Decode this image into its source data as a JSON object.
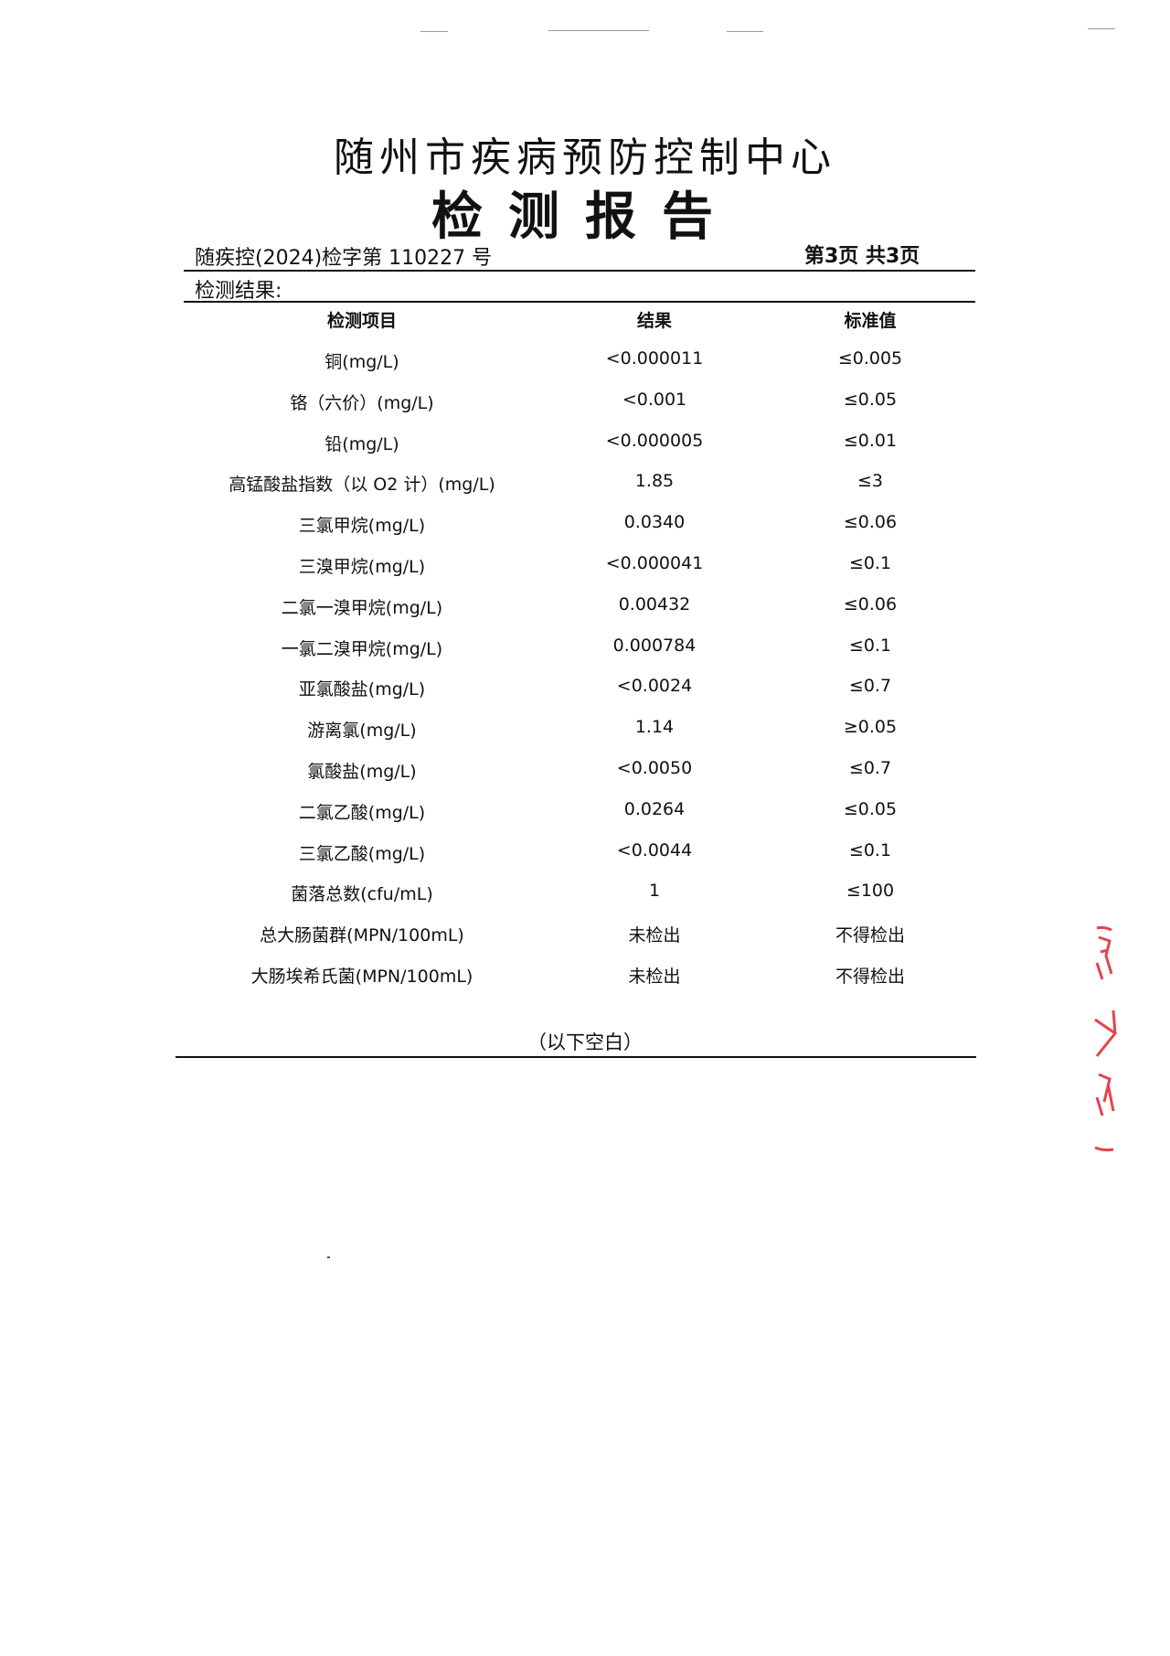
{
  "header": {
    "organization": "随州市疾病预防控制中心",
    "title": "检测报告",
    "report_number": "随疾控(2024)检字第 110227 号",
    "page_info": "第3页  共3页"
  },
  "section_label": "检测结果:",
  "table": {
    "columns": [
      "检测项目",
      "结果",
      "标准值"
    ],
    "rows": [
      {
        "item": "铜(mg/L)",
        "result": "<0.000011",
        "standard": "≤0.005"
      },
      {
        "item": "铬（六价）(mg/L)",
        "result": "<0.001",
        "standard": "≤0.05"
      },
      {
        "item": "铅(mg/L)",
        "result": "<0.000005",
        "standard": "≤0.01"
      },
      {
        "item": "高锰酸盐指数（以 O2 计）(mg/L)",
        "result": "1.85",
        "standard": "≤3"
      },
      {
        "item": "三氯甲烷(mg/L)",
        "result": "0.0340",
        "standard": "≤0.06"
      },
      {
        "item": "三溴甲烷(mg/L)",
        "result": "<0.000041",
        "standard": "≤0.1"
      },
      {
        "item": "二氯一溴甲烷(mg/L)",
        "result": "0.00432",
        "standard": "≤0.06"
      },
      {
        "item": "一氯二溴甲烷(mg/L)",
        "result": "0.000784",
        "standard": "≤0.1"
      },
      {
        "item": "亚氯酸盐(mg/L)",
        "result": "<0.0024",
        "standard": "≤0.7"
      },
      {
        "item": "游离氯(mg/L)",
        "result": "1.14",
        "standard": "≥0.05"
      },
      {
        "item": "氯酸盐(mg/L)",
        "result": "<0.0050",
        "standard": "≤0.7"
      },
      {
        "item": "二氯乙酸(mg/L)",
        "result": "0.0264",
        "standard": "≤0.05"
      },
      {
        "item": "三氯乙酸(mg/L)",
        "result": "<0.0044",
        "standard": "≤0.1"
      },
      {
        "item": "菌落总数(cfu/mL)",
        "result": "1",
        "standard": "≤100"
      },
      {
        "item": "总大肠菌群(MPN/100mL)",
        "result": "未检出",
        "standard": "不得检出"
      },
      {
        "item": "大肠埃希氏菌(MPN/100mL)",
        "result": "未检出",
        "standard": "不得检出"
      }
    ]
  },
  "footer_note": "（以下空白）",
  "colors": {
    "stamp": "#e0242c",
    "text": "#111111"
  }
}
